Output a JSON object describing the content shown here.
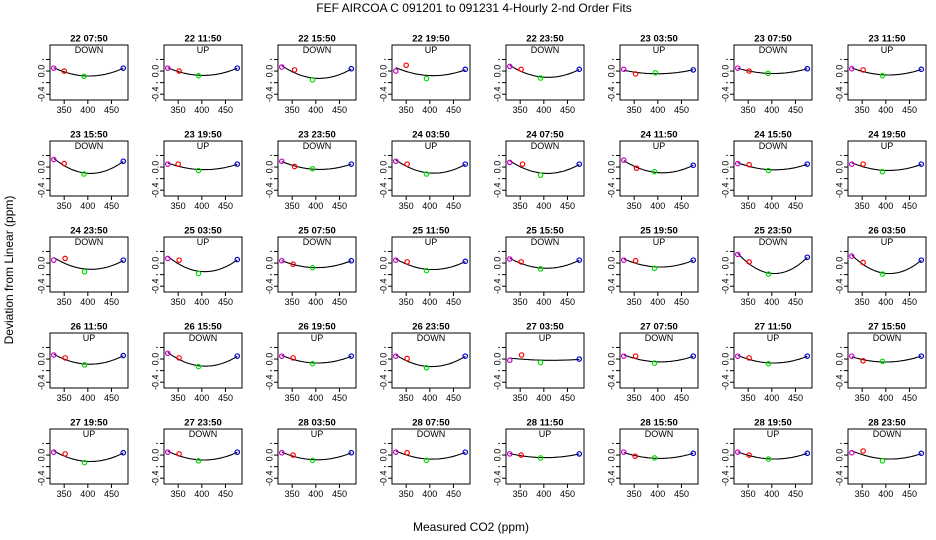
{
  "title": "FEF   AIRCOA C   091201 to 091231   4-Hourly 2-nd Order Fits",
  "xlabel": "Measured CO2 (ppm)",
  "ylabel": "Deviation from Linear (ppm)",
  "chart_data": {
    "type": "scatter",
    "layout": {
      "rows": 5,
      "cols": 8
    },
    "xlim": [
      320,
      485
    ],
    "ylim": [
      -0.5,
      0.45
    ],
    "xticks": [
      350,
      400,
      450
    ],
    "yticks": [
      -0.4,
      -0.2,
      0.0,
      0.2
    ],
    "ytick_labels": [
      "-0.4",
      "-0.2",
      "0.0",
      "0.2"
    ],
    "series_colors": {
      "low_ref": "#cc00cc",
      "mid_low": "#ff0000",
      "mid": "#00dd00",
      "high_ref": "#0000cc",
      "fit": "#000000"
    },
    "panels": [
      {
        "title": "22 07:50",
        "dir": "DOWN",
        "pts": [
          [
            328,
            0.05
          ],
          [
            350,
            0.0
          ],
          [
            392,
            -0.09
          ],
          [
            475,
            0.05
          ]
        ]
      },
      {
        "title": "22 11:50",
        "dir": "UP",
        "pts": [
          [
            328,
            0.05
          ],
          [
            352,
            0.0
          ],
          [
            393,
            -0.08
          ],
          [
            475,
            0.05
          ]
        ]
      },
      {
        "title": "22 15:50",
        "dir": "DOWN",
        "pts": [
          [
            328,
            0.07
          ],
          [
            355,
            0.02
          ],
          [
            393,
            -0.15
          ],
          [
            475,
            0.04
          ]
        ]
      },
      {
        "title": "22 19:50",
        "dir": "UP",
        "pts": [
          [
            328,
            0.0
          ],
          [
            350,
            0.1
          ],
          [
            393,
            -0.13
          ],
          [
            475,
            0.03
          ]
        ]
      },
      {
        "title": "22 23:50",
        "dir": "DOWN",
        "pts": [
          [
            328,
            0.08
          ],
          [
            352,
            0.03
          ],
          [
            393,
            -0.12
          ],
          [
            475,
            0.03
          ]
        ]
      },
      {
        "title": "23 03:50",
        "dir": "UP",
        "pts": [
          [
            328,
            0.03
          ],
          [
            353,
            -0.05
          ],
          [
            395,
            -0.03
          ],
          [
            475,
            0.02
          ]
        ]
      },
      {
        "title": "23 07:50",
        "dir": "DOWN",
        "pts": [
          [
            328,
            0.05
          ],
          [
            352,
            0.0
          ],
          [
            392,
            -0.04
          ],
          [
            475,
            0.04
          ]
        ]
      },
      {
        "title": "23 11:50",
        "dir": "UP",
        "pts": [
          [
            328,
            0.04
          ],
          [
            352,
            0.02
          ],
          [
            393,
            -0.08
          ],
          [
            475,
            0.03
          ]
        ]
      },
      {
        "title": "23 15:50",
        "dir": "DOWN",
        "pts": [
          [
            328,
            0.13
          ],
          [
            350,
            0.06
          ],
          [
            392,
            -0.12
          ],
          [
            475,
            0.1
          ]
        ]
      },
      {
        "title": "23 19:50",
        "dir": "UP",
        "pts": [
          [
            328,
            0.05
          ],
          [
            350,
            0.05
          ],
          [
            393,
            -0.06
          ],
          [
            475,
            0.05
          ]
        ]
      },
      {
        "title": "23 23:50",
        "dir": "DOWN",
        "pts": [
          [
            328,
            0.1
          ],
          [
            355,
            0.01
          ],
          [
            393,
            -0.03
          ],
          [
            475,
            0.05
          ]
        ]
      },
      {
        "title": "24 03:50",
        "dir": "UP",
        "pts": [
          [
            328,
            0.1
          ],
          [
            352,
            0.05
          ],
          [
            393,
            -0.12
          ],
          [
            475,
            0.05
          ]
        ]
      },
      {
        "title": "24 07:50",
        "dir": "DOWN",
        "pts": [
          [
            328,
            0.08
          ],
          [
            355,
            0.05
          ],
          [
            393,
            -0.14
          ],
          [
            475,
            0.05
          ]
        ]
      },
      {
        "title": "24 11:50",
        "dir": "UP",
        "pts": [
          [
            328,
            0.12
          ],
          [
            355,
            -0.02
          ],
          [
            393,
            -0.08
          ],
          [
            475,
            0.03
          ]
        ]
      },
      {
        "title": "24 15:50",
        "dir": "DOWN",
        "pts": [
          [
            328,
            0.06
          ],
          [
            352,
            0.04
          ],
          [
            393,
            -0.06
          ],
          [
            475,
            0.05
          ]
        ]
      },
      {
        "title": "24 19:50",
        "dir": "UP",
        "pts": [
          [
            328,
            0.05
          ],
          [
            352,
            0.05
          ],
          [
            393,
            -0.08
          ],
          [
            475,
            0.05
          ]
        ]
      },
      {
        "title": "24 23:50",
        "dir": "DOWN",
        "pts": [
          [
            328,
            0.05
          ],
          [
            352,
            0.08
          ],
          [
            393,
            -0.15
          ],
          [
            475,
            0.05
          ]
        ]
      },
      {
        "title": "25 03:50",
        "dir": "UP",
        "pts": [
          [
            328,
            0.08
          ],
          [
            352,
            0.05
          ],
          [
            393,
            -0.18
          ],
          [
            475,
            0.06
          ]
        ]
      },
      {
        "title": "25 07:50",
        "dir": "DOWN",
        "pts": [
          [
            328,
            0.04
          ],
          [
            352,
            -0.02
          ],
          [
            393,
            -0.08
          ],
          [
            475,
            0.04
          ]
        ]
      },
      {
        "title": "25 11:50",
        "dir": "UP",
        "pts": [
          [
            328,
            0.05
          ],
          [
            352,
            0.02
          ],
          [
            393,
            -0.13
          ],
          [
            475,
            0.03
          ]
        ]
      },
      {
        "title": "25 15:50",
        "dir": "DOWN",
        "pts": [
          [
            328,
            0.07
          ],
          [
            352,
            0.02
          ],
          [
            393,
            -0.1
          ],
          [
            475,
            0.05
          ]
        ]
      },
      {
        "title": "25 19:50",
        "dir": "UP",
        "pts": [
          [
            328,
            0.05
          ],
          [
            353,
            0.04
          ],
          [
            393,
            -0.09
          ],
          [
            475,
            0.05
          ]
        ]
      },
      {
        "title": "25 23:50",
        "dir": "DOWN",
        "pts": [
          [
            328,
            0.15
          ],
          [
            352,
            0.02
          ],
          [
            393,
            -0.19
          ],
          [
            475,
            0.1
          ]
        ]
      },
      {
        "title": "26 03:50",
        "dir": "UP",
        "pts": [
          [
            328,
            0.12
          ],
          [
            352,
            0.01
          ],
          [
            393,
            -0.19
          ],
          [
            475,
            0.05
          ]
        ]
      },
      {
        "title": "26 11:50",
        "dir": "UP",
        "pts": [
          [
            328,
            0.07
          ],
          [
            352,
            0.02
          ],
          [
            393,
            -0.1
          ],
          [
            475,
            0.06
          ]
        ]
      },
      {
        "title": "26 15:50",
        "dir": "DOWN",
        "pts": [
          [
            328,
            0.1
          ],
          [
            352,
            0.02
          ],
          [
            393,
            -0.13
          ],
          [
            475,
            0.05
          ]
        ]
      },
      {
        "title": "26 19:50",
        "dir": "UP",
        "pts": [
          [
            328,
            0.05
          ],
          [
            352,
            0.02
          ],
          [
            393,
            -0.08
          ],
          [
            475,
            0.05
          ]
        ]
      },
      {
        "title": "26 23:50",
        "dir": "DOWN",
        "pts": [
          [
            328,
            0.05
          ],
          [
            352,
            0.01
          ],
          [
            393,
            -0.15
          ],
          [
            475,
            0.05
          ]
        ]
      },
      {
        "title": "27 03:50",
        "dir": "UP",
        "pts": [
          [
            328,
            -0.02
          ],
          [
            353,
            0.07
          ],
          [
            393,
            -0.06
          ],
          [
            475,
            0.0
          ]
        ]
      },
      {
        "title": "27 07:50",
        "dir": "DOWN",
        "pts": [
          [
            328,
            0.05
          ],
          [
            353,
            0.05
          ],
          [
            393,
            -0.07
          ],
          [
            475,
            0.05
          ]
        ]
      },
      {
        "title": "27 11:50",
        "dir": "UP",
        "pts": [
          [
            328,
            0.05
          ],
          [
            352,
            0.02
          ],
          [
            393,
            -0.08
          ],
          [
            475,
            0.05
          ]
        ]
      },
      {
        "title": "27 15:50",
        "dir": "DOWN",
        "pts": [
          [
            328,
            0.05
          ],
          [
            352,
            -0.03
          ],
          [
            393,
            -0.04
          ],
          [
            475,
            0.05
          ]
        ]
      },
      {
        "title": "27 19:50",
        "dir": "UP",
        "pts": [
          [
            328,
            0.05
          ],
          [
            352,
            0.02
          ],
          [
            393,
            -0.13
          ],
          [
            475,
            0.04
          ]
        ]
      },
      {
        "title": "27 23:50",
        "dir": "DOWN",
        "pts": [
          [
            328,
            0.05
          ],
          [
            352,
            0.02
          ],
          [
            393,
            -0.1
          ],
          [
            475,
            0.05
          ]
        ]
      },
      {
        "title": "28 03:50",
        "dir": "UP",
        "pts": [
          [
            328,
            0.04
          ],
          [
            352,
            0.0
          ],
          [
            393,
            -0.09
          ],
          [
            475,
            0.04
          ]
        ]
      },
      {
        "title": "28 07:50",
        "dir": "DOWN",
        "pts": [
          [
            328,
            0.05
          ],
          [
            352,
            0.04
          ],
          [
            393,
            -0.09
          ],
          [
            475,
            0.05
          ]
        ]
      },
      {
        "title": "28 11:50",
        "dir": "UP",
        "pts": [
          [
            328,
            0.02
          ],
          [
            352,
            0.0
          ],
          [
            393,
            -0.05
          ],
          [
            475,
            0.02
          ]
        ]
      },
      {
        "title": "28 15:50",
        "dir": "DOWN",
        "pts": [
          [
            328,
            0.05
          ],
          [
            352,
            -0.02
          ],
          [
            393,
            -0.05
          ],
          [
            475,
            0.03
          ]
        ]
      },
      {
        "title": "28 19:50",
        "dir": "UP",
        "pts": [
          [
            328,
            0.05
          ],
          [
            352,
            0.0
          ],
          [
            393,
            -0.07
          ],
          [
            475,
            0.03
          ]
        ]
      },
      {
        "title": "28 23:50",
        "dir": "DOWN",
        "pts": [
          [
            328,
            0.04
          ],
          [
            352,
            0.07
          ],
          [
            393,
            -0.1
          ],
          [
            475,
            0.03
          ]
        ]
      }
    ]
  }
}
